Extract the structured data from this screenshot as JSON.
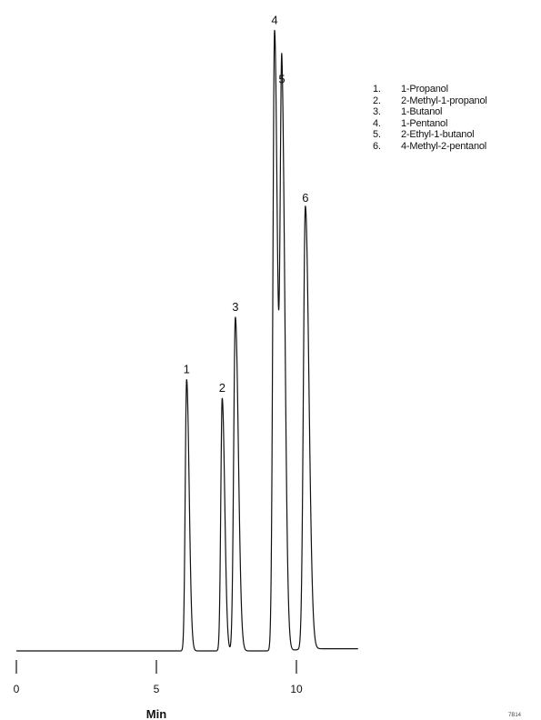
{
  "chart_data": {
    "type": "line",
    "title": "",
    "xlabel": "Min",
    "ylabel": "",
    "xlim": [
      0,
      12.2
    ],
    "ylim": [
      0,
      100
    ],
    "x_ticks": [
      0,
      5,
      10
    ],
    "grid": false,
    "legend_position": "top-right",
    "peaks": [
      {
        "label": "1",
        "rt": 6.08,
        "height": 43.5,
        "width": 0.05
      },
      {
        "label": "2",
        "rt": 7.35,
        "height": 40.5,
        "width": 0.05
      },
      {
        "label": "3",
        "rt": 7.82,
        "height": 53.5,
        "width": 0.06
      },
      {
        "label": "4",
        "rt": 9.22,
        "height": 99.5,
        "width": 0.06
      },
      {
        "label": "5",
        "rt": 9.48,
        "height": 90.0,
        "width": 0.06
      },
      {
        "label": "6",
        "rt": 10.32,
        "height": 71.0,
        "width": 0.07
      }
    ]
  },
  "legend": [
    {
      "num": "1.",
      "name": "1-Propanol"
    },
    {
      "num": "2.",
      "name": "2-Methyl-1-propanol"
    },
    {
      "num": "3.",
      "name": "1-Butanol"
    },
    {
      "num": "4.",
      "name": "1-Pentanol"
    },
    {
      "num": "5.",
      "name": "2-Ethyl-1-butanol"
    },
    {
      "num": "6.",
      "name": "4-Methyl-2-pentanol"
    }
  ],
  "footer_code": "7B14"
}
